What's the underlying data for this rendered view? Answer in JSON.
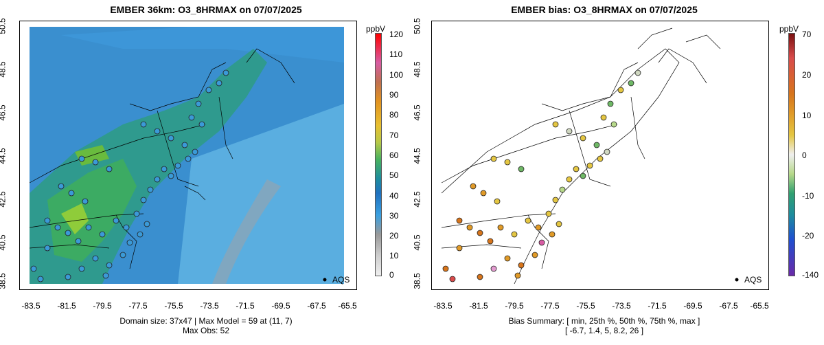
{
  "left_panel": {
    "title": "EMBER 36km: O3_8HRMAX on 07/07/2025",
    "caption_line1": "Domain size: 37x47 | Max Model = 59 at (11, 7)",
    "caption_line2": "Max Obs: 52",
    "colorbar_unit": "ppbV",
    "colorbar_ticks": [
      "120",
      "110",
      "100",
      "90",
      "80",
      "70",
      "60",
      "50",
      "40",
      "30",
      "20",
      "10",
      "0"
    ],
    "legend_label": "AQS"
  },
  "right_panel": {
    "title": "EMBER bias: O3_8HRMAX on 07/07/2025",
    "caption_line1": "Bias Summary: [ min, 25th %, 50th %, 75th %, max ]",
    "caption_line2": "[ -6.7,   1.4,   5,   8.2,   26 ]",
    "colorbar_unit": "ppbV",
    "colorbar_ticks": [
      "70",
      "20",
      "10",
      "0",
      "-10",
      "-20",
      "-140"
    ],
    "legend_label": "AQS"
  },
  "axes": {
    "x_ticks": [
      "-83.5",
      "-81.5",
      "-79.5",
      "-77.5",
      "-75.5",
      "-73.5",
      "-71.5",
      "-69.5",
      "-67.5",
      "-65.5"
    ],
    "y_ticks": [
      "50.5",
      "48.5",
      "46.5",
      "44.5",
      "42.5",
      "40.5",
      "38.5"
    ]
  },
  "chart_data": {
    "type": "map",
    "left_colormap_range": [
      0,
      120
    ],
    "right_colormap_range": [
      -140,
      70
    ],
    "bias_summary": {
      "min": -6.7,
      "p25": 1.4,
      "p50": 5,
      "p75": 8.2,
      "max": 26
    },
    "max_model": 59,
    "max_obs": 52
  }
}
